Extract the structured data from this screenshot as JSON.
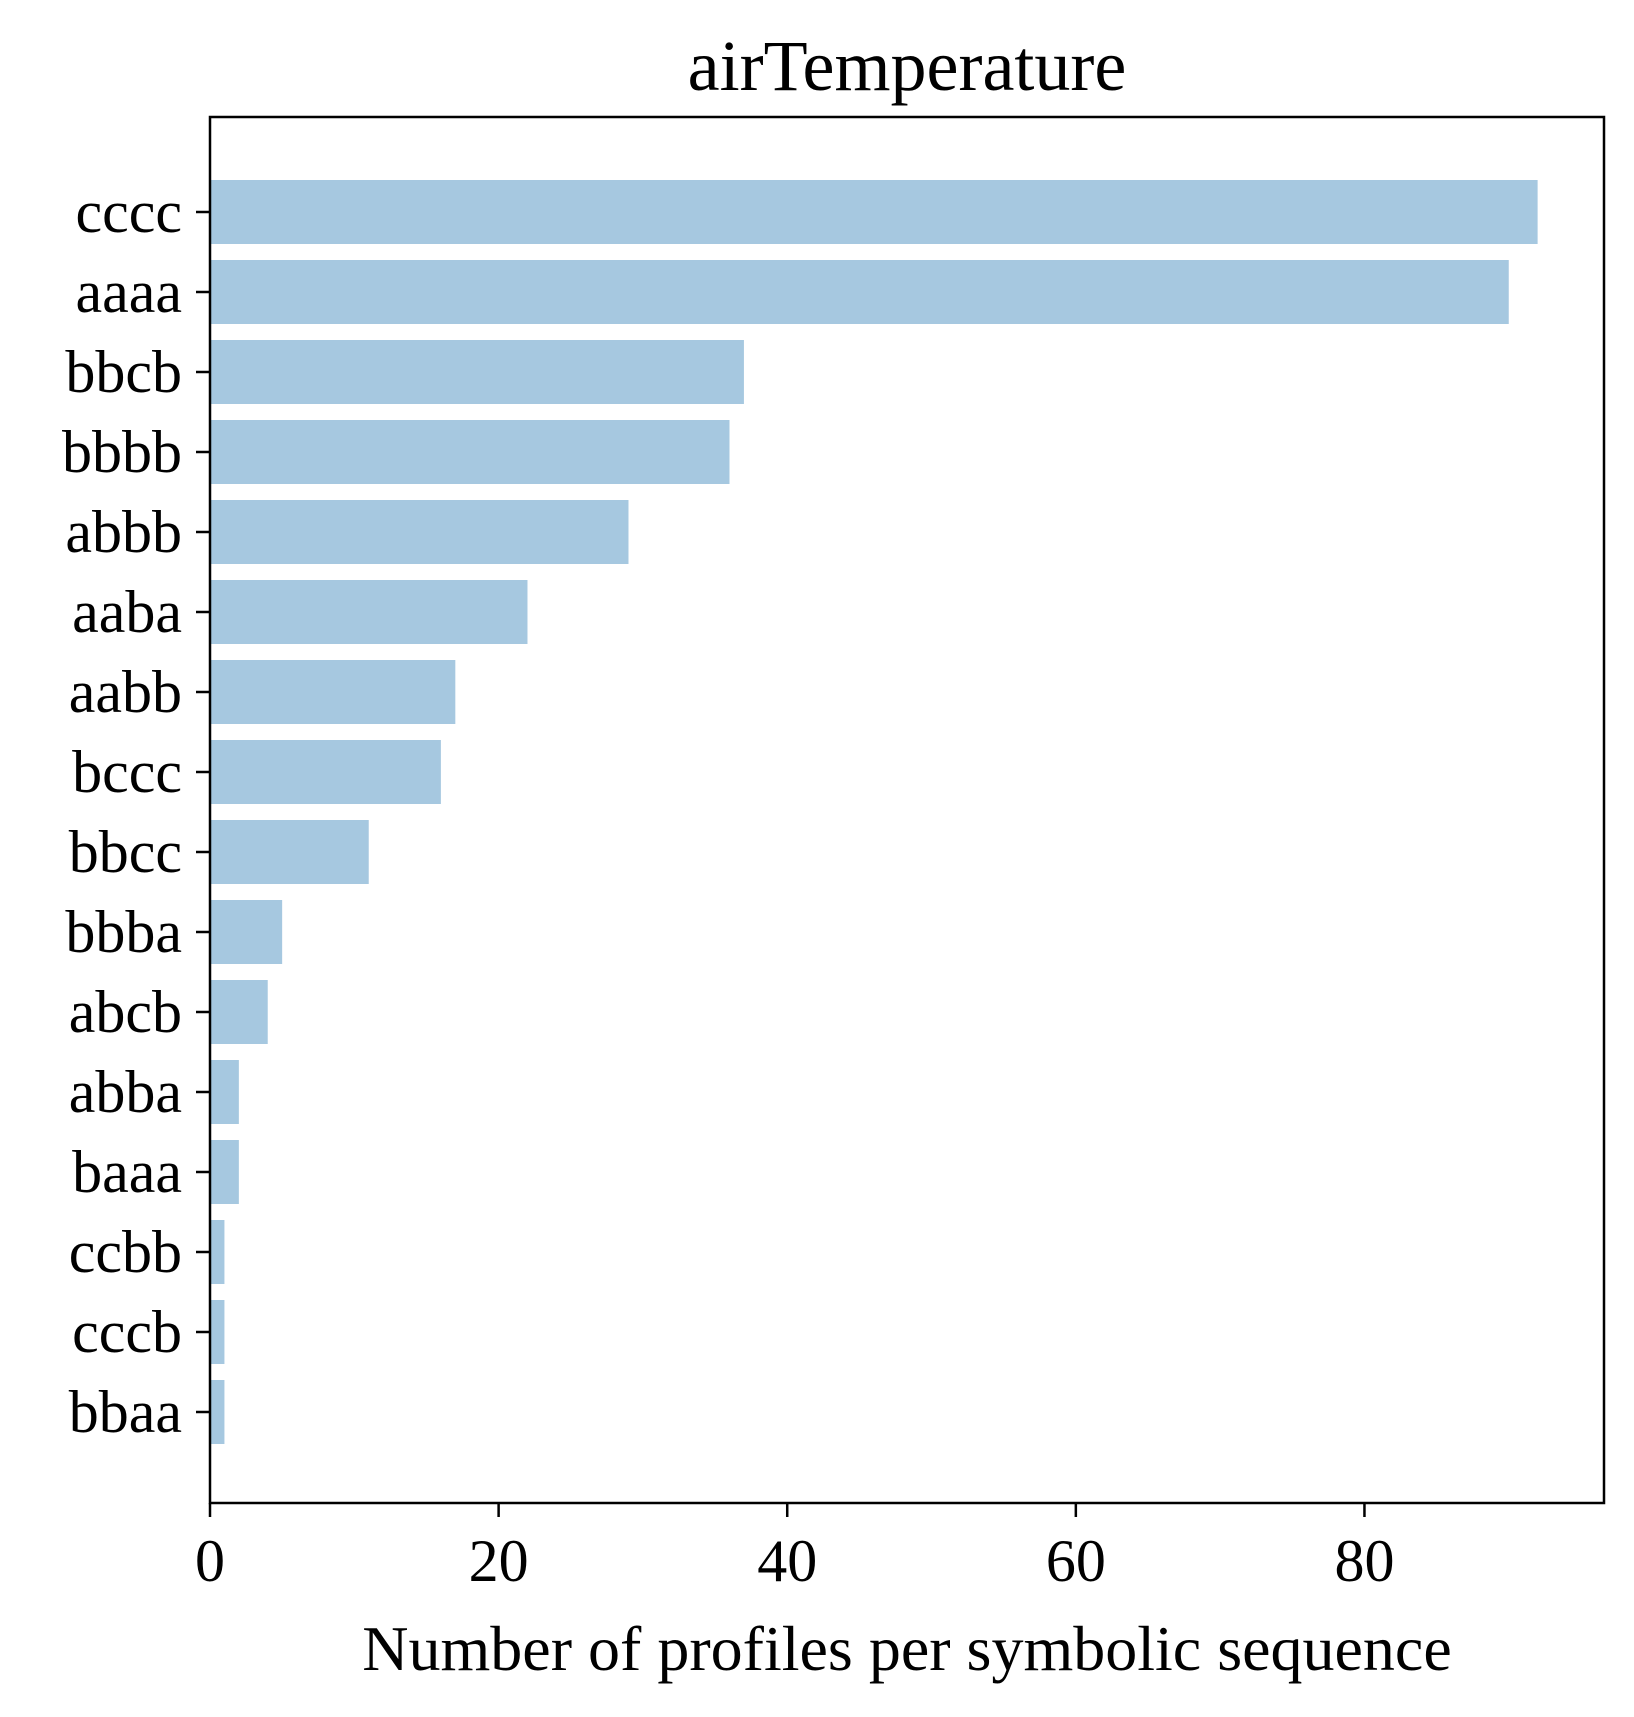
{
  "chart_data": {
    "type": "bar",
    "orientation": "horizontal",
    "title": "airTemperature",
    "xlabel": "Number of profiles per symbolic sequence",
    "ylabel": "",
    "categories": [
      "cccc",
      "aaaa",
      "bbcb",
      "bbbb",
      "abbb",
      "aaba",
      "aabb",
      "bccc",
      "bbcc",
      "bbba",
      "abcb",
      "abba",
      "baaa",
      "ccbb",
      "cccb",
      "bbaa"
    ],
    "values": [
      92,
      90,
      37,
      36,
      29,
      22,
      17,
      16,
      11,
      5,
      4,
      2,
      2,
      1,
      1,
      1
    ],
    "xlim": [
      0,
      96.6
    ],
    "xticks": [
      0,
      20,
      40,
      60,
      80
    ],
    "xtick_labels": [
      "0",
      "20",
      "40",
      "60",
      "80"
    ],
    "bar_color": "#a6c8e0",
    "grid": false,
    "legend": "none"
  }
}
